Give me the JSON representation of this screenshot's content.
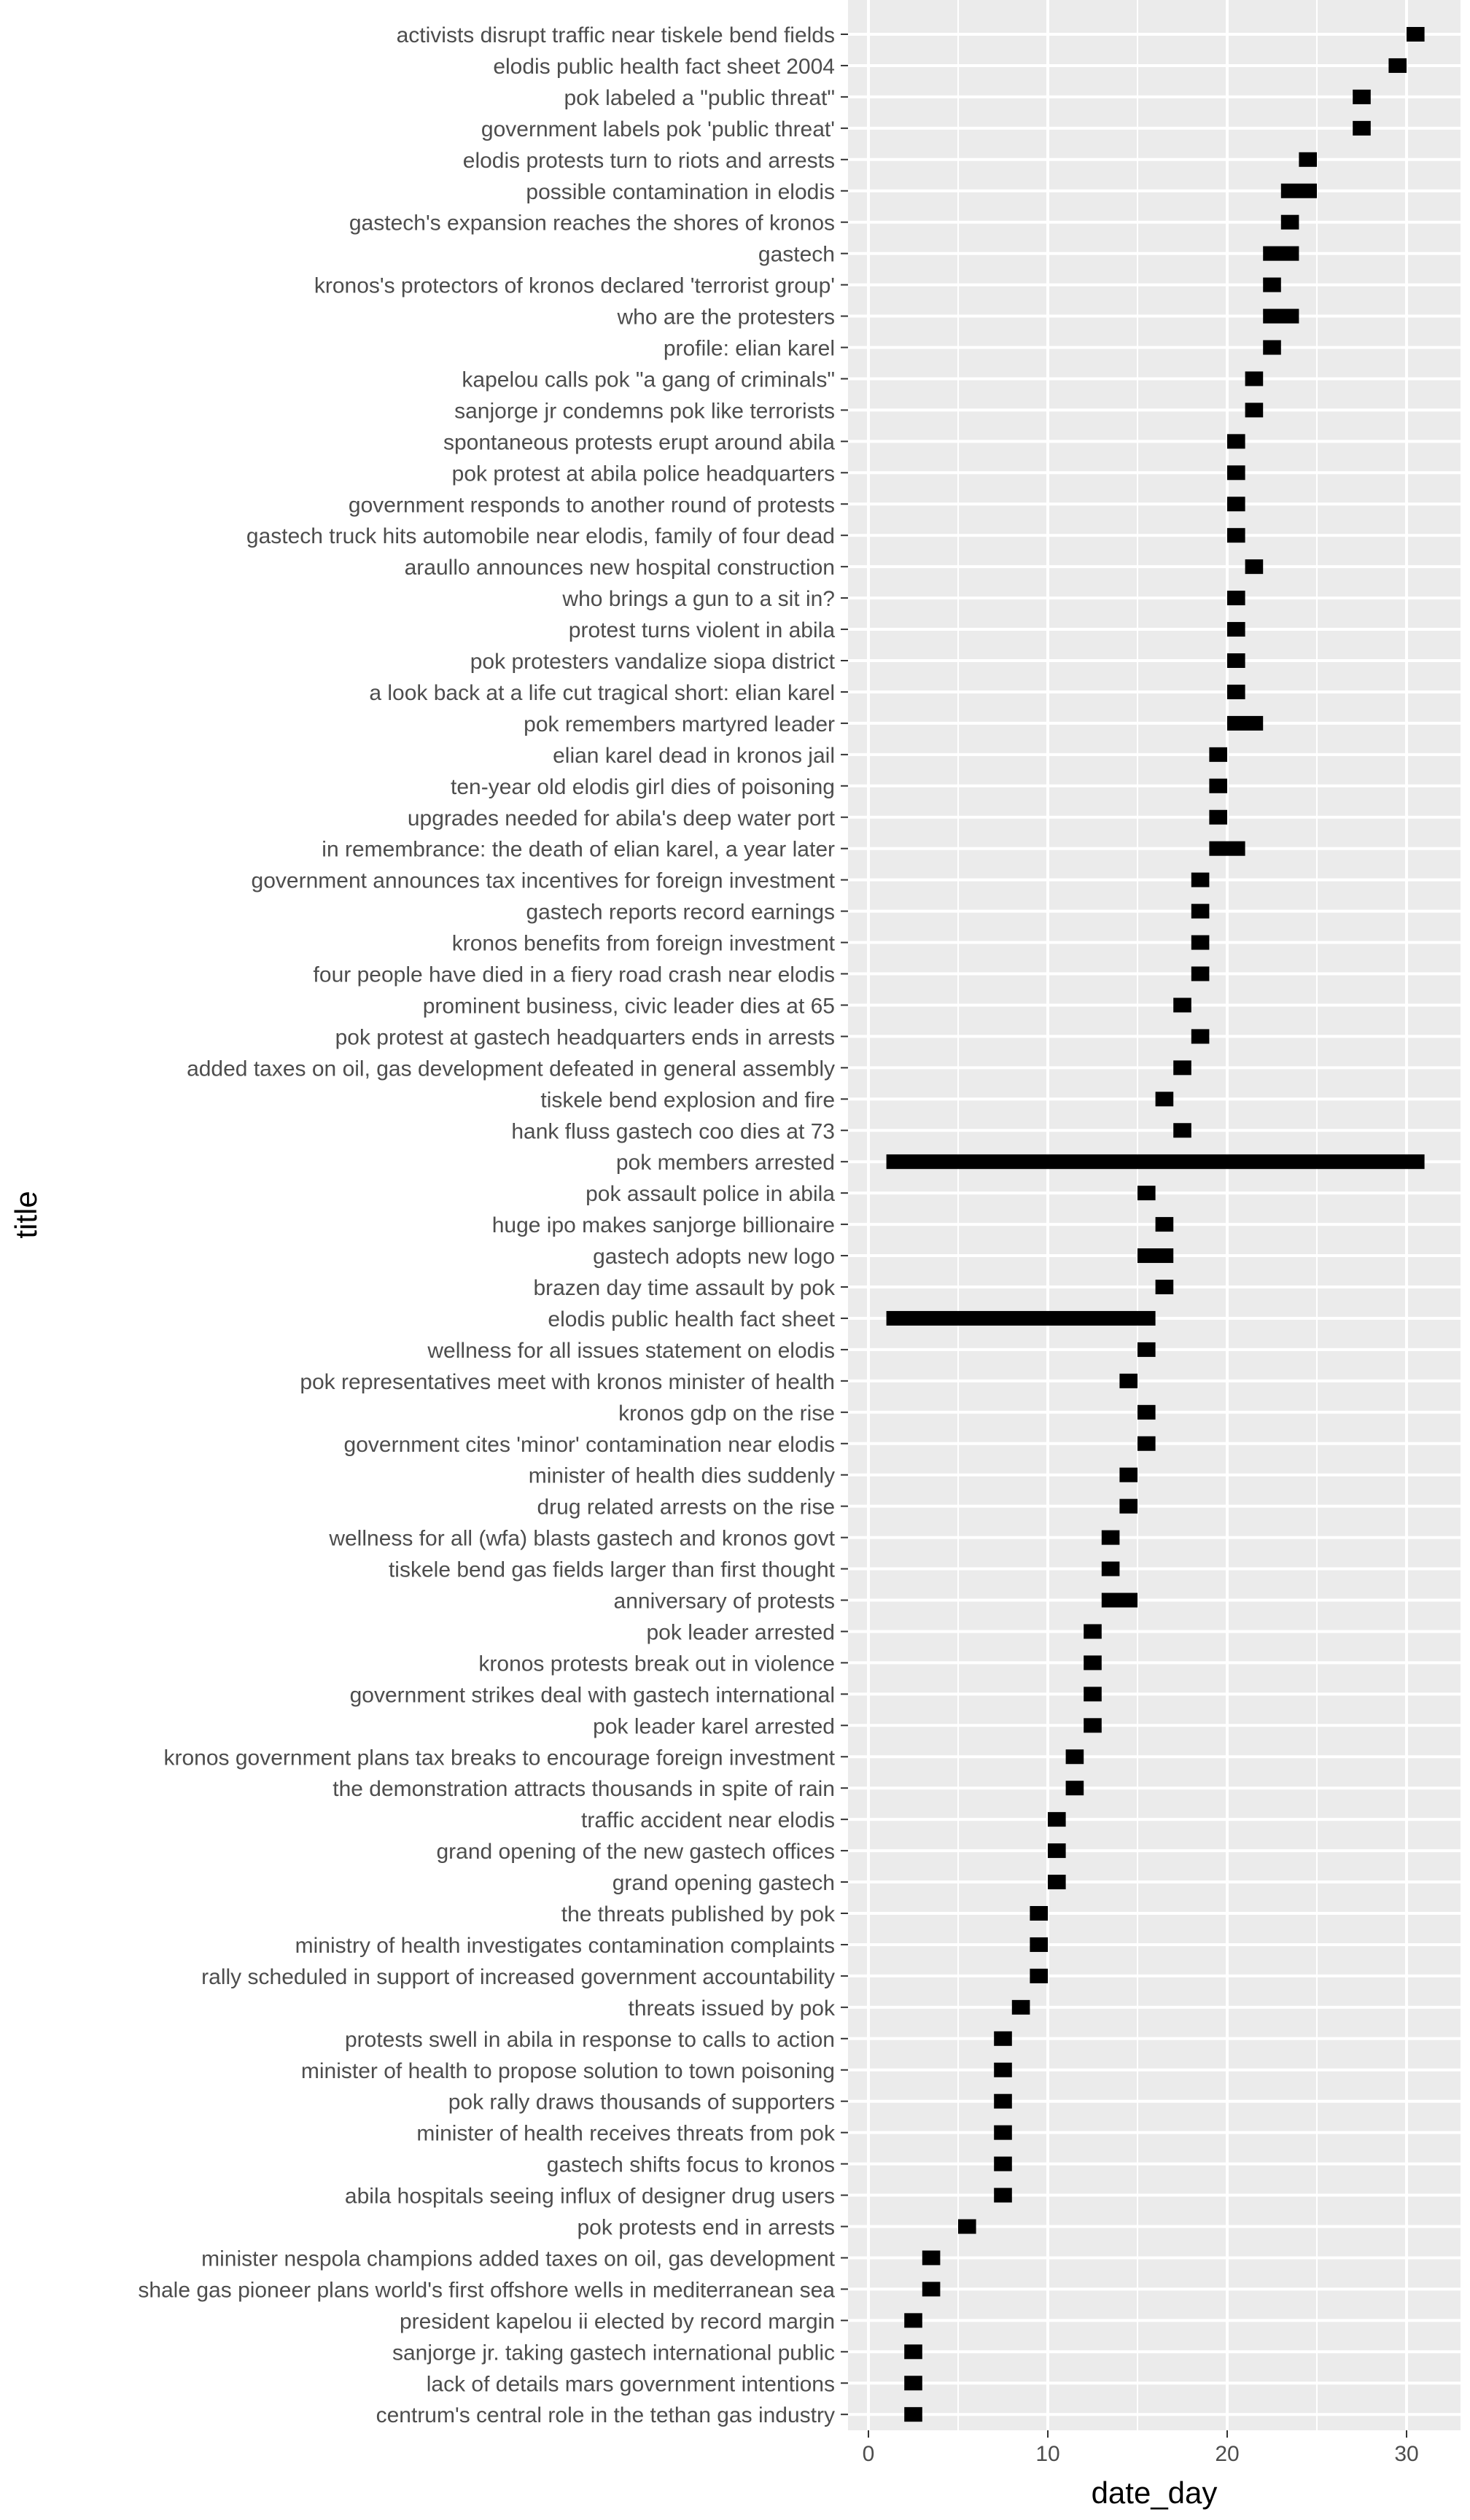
{
  "chart_data": {
    "type": "bar",
    "orientation": "horizontal-range",
    "xlabel": "date_day",
    "ylabel": "title",
    "xlim": [
      0,
      32.5
    ],
    "x_ticks": [
      0,
      10,
      20,
      30
    ],
    "x_tick_labels": [
      "0",
      "10",
      "20",
      "30"
    ],
    "grid": true,
    "legend": "none",
    "colors": {
      "panel": "#ebebeb",
      "grid": "#ffffff",
      "bar": "#000000",
      "text": "#4d4d4d",
      "axis_title": "#000000"
    },
    "categories": [
      "activists disrupt traffic near tiskele bend fields",
      "elodis public health fact sheet 2004",
      "pok labeled a \"public threat\"",
      "government labels pok 'public threat'",
      "elodis protests turn to riots and arrests",
      "possible contamination in elodis",
      "gastech's expansion reaches the shores of kronos",
      "gastech",
      "kronos's protectors of kronos declared 'terrorist group'",
      "who are the protesters",
      "profile:  elian karel",
      "kapelou calls pok \"a gang of criminals\"",
      "sanjorge jr condemns pok like terrorists",
      "spontaneous protests erupt around abila",
      "pok protest at abila police headquarters",
      "government responds to another round of protests",
      "gastech truck hits automobile near elodis, family of four dead",
      "araullo announces new hospital construction",
      "who brings a gun to a sit in?",
      "protest turns violent in abila",
      "pok protesters vandalize siopa district",
      "a look back at a life cut tragical short: elian karel",
      "pok remembers martyred leader",
      "elian karel dead in kronos jail",
      "ten-year old elodis girl dies of poisoning",
      "upgrades needed for abila's deep water port",
      "in remembrance:  the death of elian karel, a year later",
      "government announces tax incentives for foreign investment",
      "gastech reports record earnings",
      "kronos benefits from foreign investment",
      "four people have died in a fiery road crash near elodis",
      "prominent business, civic leader dies at 65",
      "pok protest at gastech headquarters ends in arrests",
      "added taxes on oil, gas development defeated in general assembly",
      "tiskele bend explosion and fire",
      "hank fluss gastech coo dies at 73",
      "pok members arrested",
      "pok assault police in abila",
      "huge ipo makes sanjorge billionaire",
      "gastech adopts new logo",
      "brazen day time assault by pok",
      "elodis public health fact sheet",
      "wellness for all issues statement on elodis",
      "pok representatives meet with kronos minister of health",
      "kronos gdp on the rise",
      "government cites 'minor' contamination near elodis",
      "minister of health dies suddenly",
      "drug related arrests on the rise",
      "wellness for all (wfa) blasts gastech and kronos govt",
      "tiskele bend gas fields larger than first thought",
      "anniversary of protests",
      "pok leader arrested",
      "kronos protests break out in violence",
      "government strikes deal with gastech international",
      "pok leader karel arrested",
      "kronos government plans tax breaks to encourage foreign investment",
      "the demonstration attracts thousands in spite of rain",
      "traffic accident near elodis",
      "grand opening of the new gastech offices",
      "grand opening gastech",
      "the threats published by pok",
      "ministry of health investigates contamination complaints",
      "rally scheduled in support of increased government accountability",
      "threats issued by pok",
      "protests swell in abila in response to calls to action",
      "minister of health to propose solution to town poisoning",
      "pok rally draws thousands of supporters",
      "minister of health receives threats from pok",
      "gastech shifts focus to kronos",
      "abila hospitals seeing influx of designer drug users",
      "pok protests end in arrests",
      "minister nespola champions added taxes on oil, gas development",
      "shale gas pioneer plans world's first offshore wells in mediterranean sea",
      "president kapelou ii elected by record margin",
      "sanjorge jr. taking gastech international public",
      "lack of details mars government intentions",
      "centrum's central role in the tethan gas industry"
    ],
    "start": [
      30,
      29,
      27,
      27,
      24,
      23,
      23,
      22,
      22,
      22,
      22,
      21,
      21,
      20,
      20,
      20,
      20,
      21,
      20,
      20,
      20,
      20,
      20,
      19,
      19,
      19,
      19,
      18,
      18,
      18,
      18,
      17,
      18,
      17,
      16,
      17,
      1,
      15,
      16,
      15,
      16,
      1,
      15,
      14,
      15,
      15,
      14,
      14,
      13,
      13,
      13,
      12,
      12,
      12,
      12,
      11,
      11,
      10,
      10,
      10,
      9,
      9,
      9,
      8,
      7,
      7,
      7,
      7,
      7,
      7,
      5,
      3,
      3,
      2,
      2,
      2,
      2
    ],
    "end": [
      31,
      30,
      28,
      28,
      25,
      25,
      24,
      24,
      23,
      24,
      23,
      22,
      22,
      21,
      21,
      21,
      21,
      22,
      21,
      21,
      21,
      21,
      22,
      20,
      20,
      20,
      21,
      19,
      19,
      19,
      19,
      18,
      19,
      18,
      17,
      18,
      31,
      16,
      17,
      17,
      17,
      16,
      16,
      15,
      16,
      16,
      15,
      15,
      14,
      14,
      15,
      13,
      13,
      13,
      13,
      12,
      12,
      11,
      11,
      11,
      10,
      10,
      10,
      9,
      8,
      8,
      8,
      8,
      8,
      8,
      6,
      4,
      4,
      3,
      3,
      3,
      3
    ]
  }
}
